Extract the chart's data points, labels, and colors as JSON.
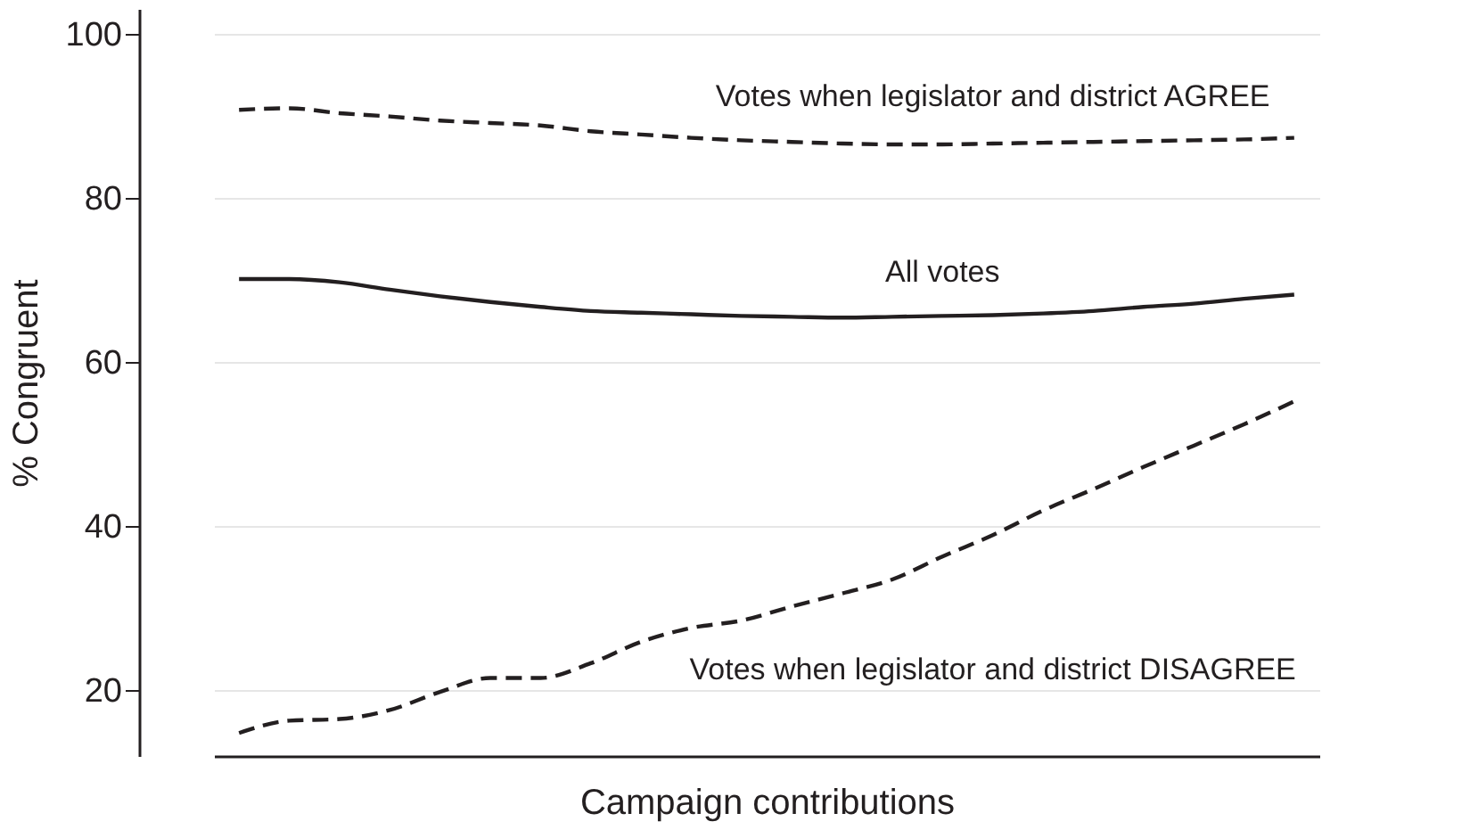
{
  "chart_data": {
    "type": "line",
    "xlabel": "Campaign contributions",
    "ylabel": "% Congruent",
    "categories": [
      null,
      null,
      null,
      null,
      null,
      null,
      null,
      null,
      null,
      null,
      null,
      null,
      null,
      null,
      null,
      null,
      null,
      null,
      null,
      null,
      null,
      null
    ],
    "ylim": [
      12,
      103
    ],
    "yticks": [
      20,
      40,
      60,
      80,
      100
    ],
    "grid": "y",
    "series": [
      {
        "name": "Votes when legislator and district AGREE",
        "color": "#231f20",
        "line_style": "dashed",
        "values": [
          90.7,
          90.9,
          90.3,
          89.9,
          89.4,
          89.1,
          88.8,
          88.1,
          87.7,
          87.3,
          87.0,
          86.8,
          86.6,
          86.5,
          86.5,
          86.6,
          86.7,
          86.8,
          86.9,
          87.0,
          87.1,
          87.3
        ]
      },
      {
        "name": "All votes",
        "color": "#231f20",
        "line_style": "solid",
        "values": [
          70.1,
          70.1,
          69.7,
          68.8,
          68.0,
          67.3,
          66.7,
          66.2,
          66.0,
          65.8,
          65.6,
          65.5,
          65.4,
          65.5,
          65.6,
          65.7,
          65.9,
          66.2,
          66.7,
          67.1,
          67.7,
          68.2
        ]
      },
      {
        "name": "Votes when legislator and district DISAGREE",
        "color": "#231f20",
        "line_style": "dashed",
        "values": [
          14.8,
          16.3,
          16.5,
          17.6,
          19.8,
          21.5,
          21.5,
          23.3,
          25.9,
          27.6,
          28.5,
          30.2,
          31.8,
          33.5,
          36.3,
          38.9,
          41.9,
          44.5,
          47.2,
          49.8,
          52.4,
          55.2
        ]
      }
    ]
  }
}
